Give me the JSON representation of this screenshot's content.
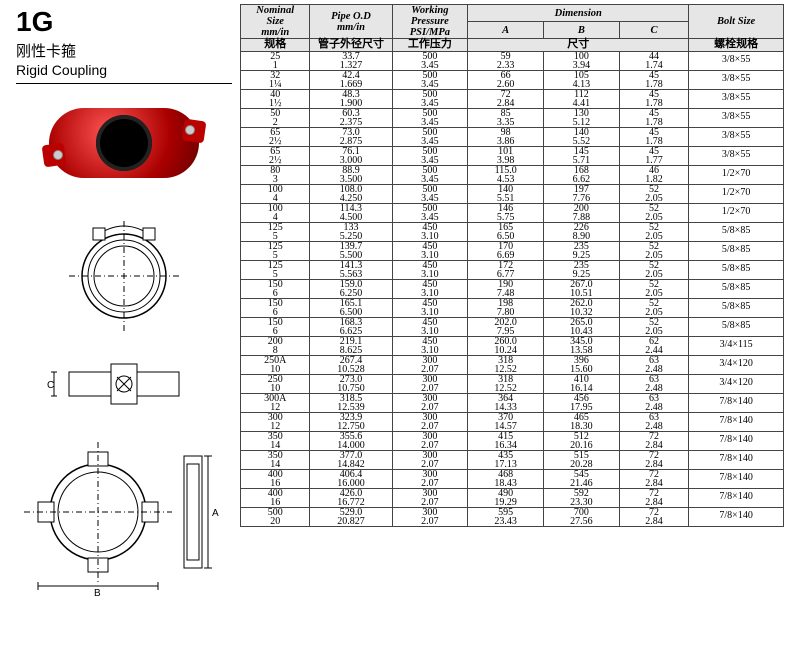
{
  "left": {
    "code": "1G",
    "title_cn": "刚性卡箍",
    "title_en": "Rigid Coupling"
  },
  "headers": {
    "nominal1": "Nominal",
    "nominal2": "Size",
    "nominal3": "mm/in",
    "pipe1": "Pipe  O.D",
    "pipe2": "mm/in",
    "wp1": "Working",
    "wp2": "Pressure",
    "wp3": "PSI/MPa",
    "dim": "Dimension",
    "A": "A",
    "B": "B",
    "C": "C",
    "bolt": "Bolt Size",
    "sub_ns": "规格",
    "sub_od": "管子外径尺寸",
    "sub_wp": "工作压力",
    "sub_dim": "尺寸",
    "sub_bolt": "螺栓规格"
  },
  "rows": [
    {
      "ns": [
        "25",
        "1"
      ],
      "od": [
        "33.7",
        "1.327"
      ],
      "wp": [
        "500",
        "3.45"
      ],
      "a": [
        "59",
        "2.33"
      ],
      "b": [
        "100",
        "3.94"
      ],
      "c": [
        "44",
        "1.74"
      ],
      "bolt": "3/8×55"
    },
    {
      "ns": [
        "32",
        "1¼"
      ],
      "od": [
        "42.4",
        "1.669"
      ],
      "wp": [
        "500",
        "3.45"
      ],
      "a": [
        "66",
        "2.60"
      ],
      "b": [
        "105",
        "4.13"
      ],
      "c": [
        "45",
        "1.78"
      ],
      "bolt": "3/8×55"
    },
    {
      "ns": [
        "40",
        "1½"
      ],
      "od": [
        "48.3",
        "1.900"
      ],
      "wp": [
        "500",
        "3.45"
      ],
      "a": [
        "72",
        "2.84"
      ],
      "b": [
        "112",
        "4.41"
      ],
      "c": [
        "45",
        "1.78"
      ],
      "bolt": "3/8×55"
    },
    {
      "ns": [
        "50",
        "2"
      ],
      "od": [
        "60.3",
        "2.375"
      ],
      "wp": [
        "500",
        "3.45"
      ],
      "a": [
        "85",
        "3.35"
      ],
      "b": [
        "130",
        "5.12"
      ],
      "c": [
        "45",
        "1.78"
      ],
      "bolt": "3/8×55"
    },
    {
      "ns": [
        "65",
        "2½"
      ],
      "od": [
        "73.0",
        "2.875"
      ],
      "wp": [
        "500",
        "3.45"
      ],
      "a": [
        "98",
        "3.86"
      ],
      "b": [
        "140",
        "5.52"
      ],
      "c": [
        "45",
        "1.78"
      ],
      "bolt": "3/8×55"
    },
    {
      "ns": [
        "65",
        "2½"
      ],
      "od": [
        "76.1",
        "3.000"
      ],
      "wp": [
        "500",
        "3.45"
      ],
      "a": [
        "101",
        "3.98"
      ],
      "b": [
        "145",
        "5.71"
      ],
      "c": [
        "45",
        "1.77"
      ],
      "bolt": "3/8×55"
    },
    {
      "ns": [
        "80",
        "3"
      ],
      "od": [
        "88.9",
        "3.500"
      ],
      "wp": [
        "500",
        "3.45"
      ],
      "a": [
        "115.0",
        "4.53"
      ],
      "b": [
        "168",
        "6.62"
      ],
      "c": [
        "46",
        "1.82"
      ],
      "bolt": "1/2×70"
    },
    {
      "ns": [
        "100",
        "4"
      ],
      "od": [
        "108.0",
        "4.250"
      ],
      "wp": [
        "500",
        "3.45"
      ],
      "a": [
        "140",
        "5.51"
      ],
      "b": [
        "197",
        "7.76"
      ],
      "c": [
        "52",
        "2.05"
      ],
      "bolt": "1/2×70"
    },
    {
      "ns": [
        "100",
        "4"
      ],
      "od": [
        "114.3",
        "4.500"
      ],
      "wp": [
        "500",
        "3.45"
      ],
      "a": [
        "146",
        "5.75"
      ],
      "b": [
        "200",
        "7.88"
      ],
      "c": [
        "52",
        "2.05"
      ],
      "bolt": "1/2×70"
    },
    {
      "ns": [
        "125",
        "5"
      ],
      "od": [
        "133",
        "5.250"
      ],
      "wp": [
        "450",
        "3.10"
      ],
      "a": [
        "165",
        "6.50"
      ],
      "b": [
        "226",
        "8.90"
      ],
      "c": [
        "52",
        "2.05"
      ],
      "bolt": "5/8×85"
    },
    {
      "ns": [
        "125",
        "5"
      ],
      "od": [
        "139.7",
        "5.500"
      ],
      "wp": [
        "450",
        "3.10"
      ],
      "a": [
        "170",
        "6.69"
      ],
      "b": [
        "235",
        "9.25"
      ],
      "c": [
        "52",
        "2.05"
      ],
      "bolt": "5/8×85"
    },
    {
      "ns": [
        "125",
        "5"
      ],
      "od": [
        "141.3",
        "5.563"
      ],
      "wp": [
        "450",
        "3.10"
      ],
      "a": [
        "172",
        "6.77"
      ],
      "b": [
        "235",
        "9.25"
      ],
      "c": [
        "52",
        "2.05"
      ],
      "bolt": "5/8×85"
    },
    {
      "ns": [
        "150",
        "6"
      ],
      "od": [
        "159.0",
        "6.250"
      ],
      "wp": [
        "450",
        "3.10"
      ],
      "a": [
        "190",
        "7.48"
      ],
      "b": [
        "267.0",
        "10.51"
      ],
      "c": [
        "52",
        "2.05"
      ],
      "bolt": "5/8×85"
    },
    {
      "ns": [
        "150",
        "6"
      ],
      "od": [
        "165.1",
        "6.500"
      ],
      "wp": [
        "450",
        "3.10"
      ],
      "a": [
        "198",
        "7.80"
      ],
      "b": [
        "262.0",
        "10.32"
      ],
      "c": [
        "52",
        "2.05"
      ],
      "bolt": "5/8×85"
    },
    {
      "ns": [
        "150",
        "6"
      ],
      "od": [
        "168.3",
        "6.625"
      ],
      "wp": [
        "450",
        "3.10"
      ],
      "a": [
        "202.0",
        "7.95"
      ],
      "b": [
        "265.0",
        "10.43"
      ],
      "c": [
        "52",
        "2.05"
      ],
      "bolt": "5/8×85"
    },
    {
      "ns": [
        "200",
        "8"
      ],
      "od": [
        "219.1",
        "8.625"
      ],
      "wp": [
        "450",
        "3.10"
      ],
      "a": [
        "260.0",
        "10.24"
      ],
      "b": [
        "345.0",
        "13.58"
      ],
      "c": [
        "62",
        "2.44"
      ],
      "bolt": "3/4×115"
    },
    {
      "ns": [
        "250A",
        "10"
      ],
      "od": [
        "267.4",
        "10.528"
      ],
      "wp": [
        "300",
        "2.07"
      ],
      "a": [
        "318",
        "12.52"
      ],
      "b": [
        "396",
        "15.60"
      ],
      "c": [
        "63",
        "2.48"
      ],
      "bolt": "3/4×120"
    },
    {
      "ns": [
        "250",
        "10"
      ],
      "od": [
        "273.0",
        "10.750"
      ],
      "wp": [
        "300",
        "2.07"
      ],
      "a": [
        "318",
        "12.52"
      ],
      "b": [
        "410",
        "16.14"
      ],
      "c": [
        "63",
        "2.48"
      ],
      "bolt": "3/4×120"
    },
    {
      "ns": [
        "300A",
        "12"
      ],
      "od": [
        "318.5",
        "12.539"
      ],
      "wp": [
        "300",
        "2.07"
      ],
      "a": [
        "364",
        "14.33"
      ],
      "b": [
        "456",
        "17.95"
      ],
      "c": [
        "63",
        "2.48"
      ],
      "bolt": "7/8×140"
    },
    {
      "ns": [
        "300",
        "12"
      ],
      "od": [
        "323.9",
        "12.750"
      ],
      "wp": [
        "300",
        "2.07"
      ],
      "a": [
        "370",
        "14.57"
      ],
      "b": [
        "465",
        "18.30"
      ],
      "c": [
        "63",
        "2.48"
      ],
      "bolt": "7/8×140"
    },
    {
      "ns": [
        "350",
        "14"
      ],
      "od": [
        "355.6",
        "14.000"
      ],
      "wp": [
        "300",
        "2.07"
      ],
      "a": [
        "415",
        "16.34"
      ],
      "b": [
        "512",
        "20.16"
      ],
      "c": [
        "72",
        "2.84"
      ],
      "bolt": "7/8×140"
    },
    {
      "ns": [
        "350",
        "14"
      ],
      "od": [
        "377.0",
        "14.842"
      ],
      "wp": [
        "300",
        "2.07"
      ],
      "a": [
        "435",
        "17.13"
      ],
      "b": [
        "515",
        "20.28"
      ],
      "c": [
        "72",
        "2.84"
      ],
      "bolt": "7/8×140"
    },
    {
      "ns": [
        "400",
        "16"
      ],
      "od": [
        "406.4",
        "16.000"
      ],
      "wp": [
        "300",
        "2.07"
      ],
      "a": [
        "468",
        "18.43"
      ],
      "b": [
        "545",
        "21.46"
      ],
      "c": [
        "72",
        "2.84"
      ],
      "bolt": "7/8×140"
    },
    {
      "ns": [
        "400",
        "16"
      ],
      "od": [
        "426.0",
        "16.772"
      ],
      "wp": [
        "300",
        "2.07"
      ],
      "a": [
        "490",
        "19.29"
      ],
      "b": [
        "592",
        "23.30"
      ],
      "c": [
        "72",
        "2.84"
      ],
      "bolt": "7/8×140"
    },
    {
      "ns": [
        "500",
        "20"
      ],
      "od": [
        "529.0",
        "20.827"
      ],
      "wp": [
        "300",
        "2.07"
      ],
      "a": [
        "595",
        "23.43"
      ],
      "b": [
        "700",
        "27.56"
      ],
      "c": [
        "72",
        "2.84"
      ],
      "bolt": "7/8×140"
    }
  ]
}
